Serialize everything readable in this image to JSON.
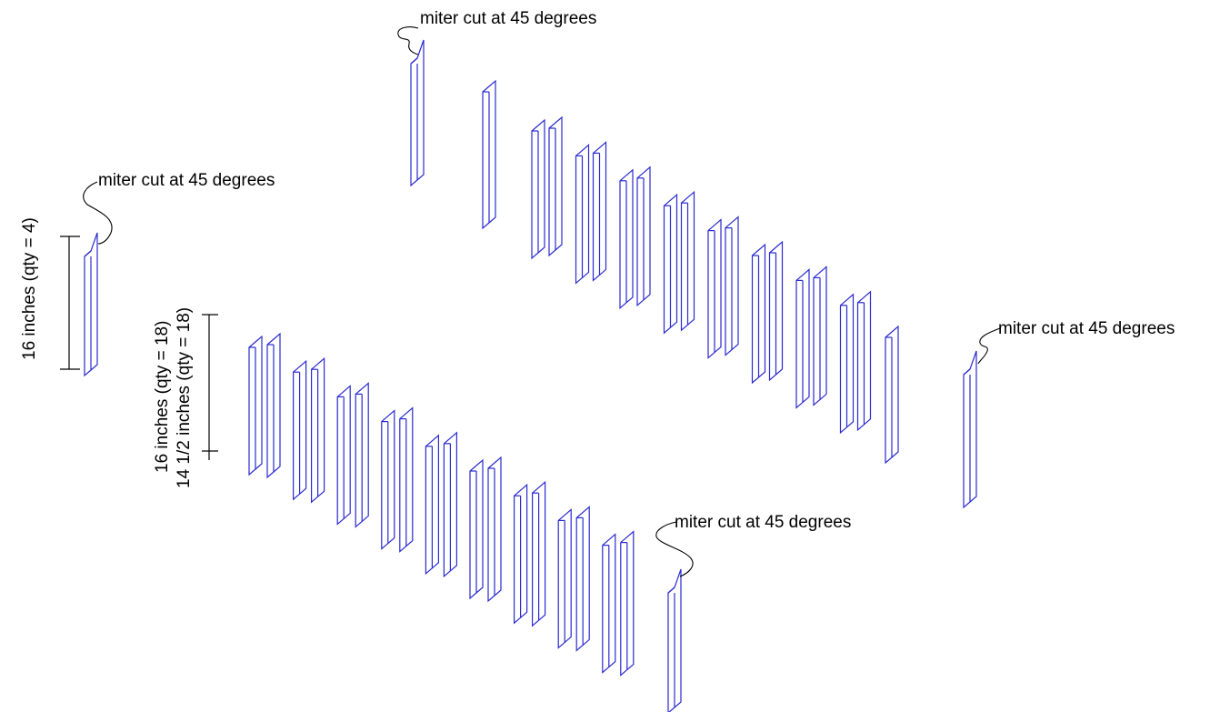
{
  "labels": {
    "miter_top": "miter cut at 45 degrees",
    "miter_left": "miter cut at 45 degrees",
    "miter_right": "miter cut at 45 degrees",
    "miter_bottom": "miter cut at 45 degrees",
    "dim_left": "16 inches (qty = 4)",
    "dim_mid_1": "16 inches (qty = 18)",
    "dim_mid_2": "14 1/2 inches (qty = 18)"
  },
  "colors": {
    "stick_outline": "#2a2ad0",
    "text": "#000000",
    "background": "#ffffff"
  }
}
